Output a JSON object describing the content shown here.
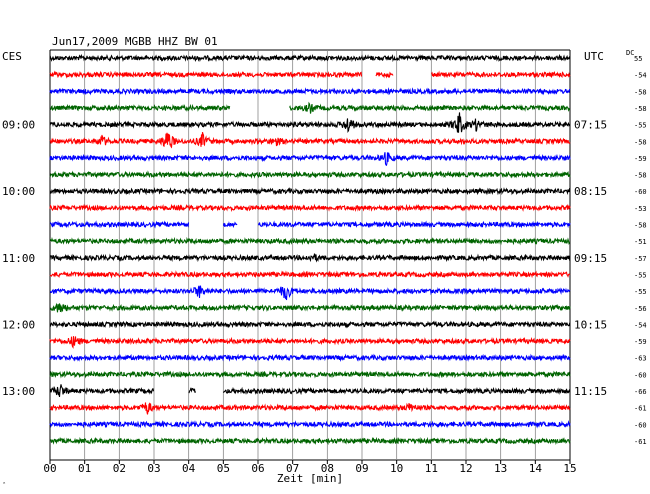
{
  "chart_data": {
    "type": "line",
    "title": "Jun17,2009  MGBB HHZ BW 01",
    "left_timezone": "CES",
    "right_timezone": "UTC",
    "dc_header": "DC",
    "xlabel": "Zeit [min]",
    "xlim": [
      0,
      15
    ],
    "x_ticks": [
      "00",
      "01",
      "02",
      "03",
      "04",
      "05",
      "06",
      "07",
      "08",
      "09",
      "10",
      "11",
      "12",
      "13",
      "14",
      "15"
    ],
    "trace_colors": [
      "#000000",
      "#ff0000",
      "#0000ff",
      "#006400"
    ],
    "hour_labels_left": [
      {
        "trace": 4,
        "text": "09:00"
      },
      {
        "trace": 8,
        "text": "10:00"
      },
      {
        "trace": 12,
        "text": "11:00"
      },
      {
        "trace": 16,
        "text": "12:00"
      },
      {
        "trace": 20,
        "text": "13:00"
      }
    ],
    "hour_labels_right": [
      {
        "trace": 4,
        "text": "07:15"
      },
      {
        "trace": 8,
        "text": "08:15"
      },
      {
        "trace": 12,
        "text": "09:15"
      },
      {
        "trace": 16,
        "text": "10:15"
      },
      {
        "trace": 20,
        "text": "11:15"
      }
    ],
    "dc_offsets": [
      "55",
      "-54",
      "-58",
      "-58",
      "-55",
      "-58",
      "-59",
      "-58",
      "-60",
      "-53",
      "-58",
      "-51",
      "-57",
      "-55",
      "-55",
      "-56",
      "-54",
      "-59",
      "-63",
      "-60",
      "-66",
      "-61",
      "-60",
      "-61"
    ],
    "series": [
      {
        "values": [],
        "gaps": [],
        "events": []
      },
      {
        "values": [],
        "gaps": [
          [
            9.0,
            9.4
          ],
          [
            9.9,
            11.0
          ]
        ],
        "events": []
      },
      {
        "values": [],
        "gaps": [],
        "events": []
      },
      {
        "values": [],
        "gaps": [
          [
            5.2,
            6.9
          ]
        ],
        "events": [
          {
            "t": 7.5,
            "amp": 4
          }
        ]
      },
      {
        "values": [],
        "gaps": [],
        "events": [
          {
            "t": 8.6,
            "amp": 8
          },
          {
            "t": 11.8,
            "amp": 12
          },
          {
            "t": 12.3,
            "amp": 5
          }
        ]
      },
      {
        "values": [],
        "gaps": [],
        "events": [
          {
            "t": 1.5,
            "amp": 5
          },
          {
            "t": 3.4,
            "amp": 12
          },
          {
            "t": 4.4,
            "amp": 7
          },
          {
            "t": 6.5,
            "amp": 4
          }
        ]
      },
      {
        "values": [],
        "gaps": [],
        "events": [
          {
            "t": 9.7,
            "amp": 6
          }
        ]
      },
      {
        "values": [],
        "gaps": [],
        "events": []
      },
      {
        "values": [],
        "gaps": [],
        "events": []
      },
      {
        "values": [],
        "gaps": [],
        "events": []
      },
      {
        "values": [],
        "gaps": [
          [
            4.0,
            5.0
          ],
          [
            5.4,
            6.0
          ]
        ],
        "events": []
      },
      {
        "values": [],
        "gaps": [],
        "events": []
      },
      {
        "values": [],
        "gaps": [],
        "events": [
          {
            "t": 7.6,
            "amp": 3
          }
        ]
      },
      {
        "values": [],
        "gaps": [],
        "events": []
      },
      {
        "values": [],
        "gaps": [],
        "events": [
          {
            "t": 4.3,
            "amp": 6
          },
          {
            "t": 6.8,
            "amp": 9
          }
        ]
      },
      {
        "values": [],
        "gaps": [],
        "events": [
          {
            "t": 0.3,
            "amp": 6
          }
        ]
      },
      {
        "values": [],
        "gaps": [],
        "events": []
      },
      {
        "values": [],
        "gaps": [],
        "events": [
          {
            "t": 0.7,
            "amp": 6
          }
        ]
      },
      {
        "values": [],
        "gaps": [],
        "events": []
      },
      {
        "values": [],
        "gaps": [],
        "events": []
      },
      {
        "values": [],
        "gaps": [
          [
            3.0,
            4.0
          ],
          [
            4.2,
            5.0
          ]
        ],
        "events": [
          {
            "t": 0.3,
            "amp": 7
          },
          {
            "t": 4.0,
            "amp": 3
          }
        ]
      },
      {
        "values": [],
        "gaps": [],
        "events": [
          {
            "t": 2.8,
            "amp": 6
          },
          {
            "t": 10.4,
            "amp": 4
          }
        ]
      },
      {
        "values": [],
        "gaps": [],
        "events": []
      },
      {
        "values": [],
        "gaps": [],
        "events": []
      }
    ]
  },
  "footer_mark": "ˆ"
}
